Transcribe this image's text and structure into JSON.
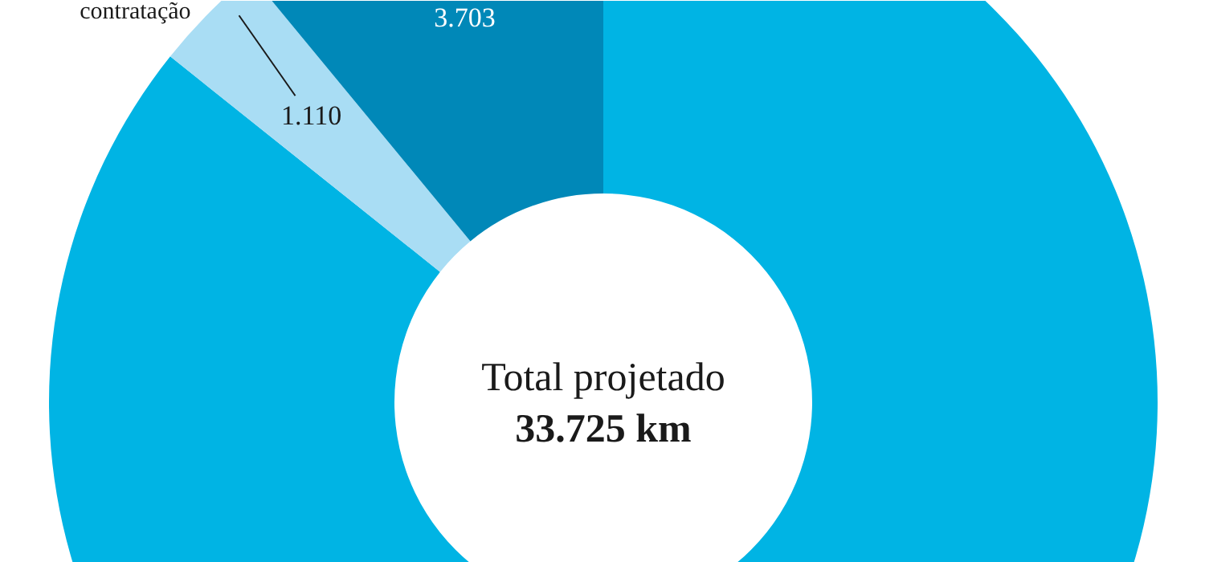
{
  "chart_data": {
    "type": "donut",
    "categories": [
      null,
      "contratação",
      null
    ],
    "values": [
      28912,
      1110,
      3703
    ],
    "colors": [
      "#00b4e4",
      "#a9ddf4",
      "#0088b8"
    ],
    "value_labels": [
      null,
      "1.110",
      "3.703"
    ],
    "annotations": [
      "Total projetado",
      "33.725 km"
    ]
  }
}
